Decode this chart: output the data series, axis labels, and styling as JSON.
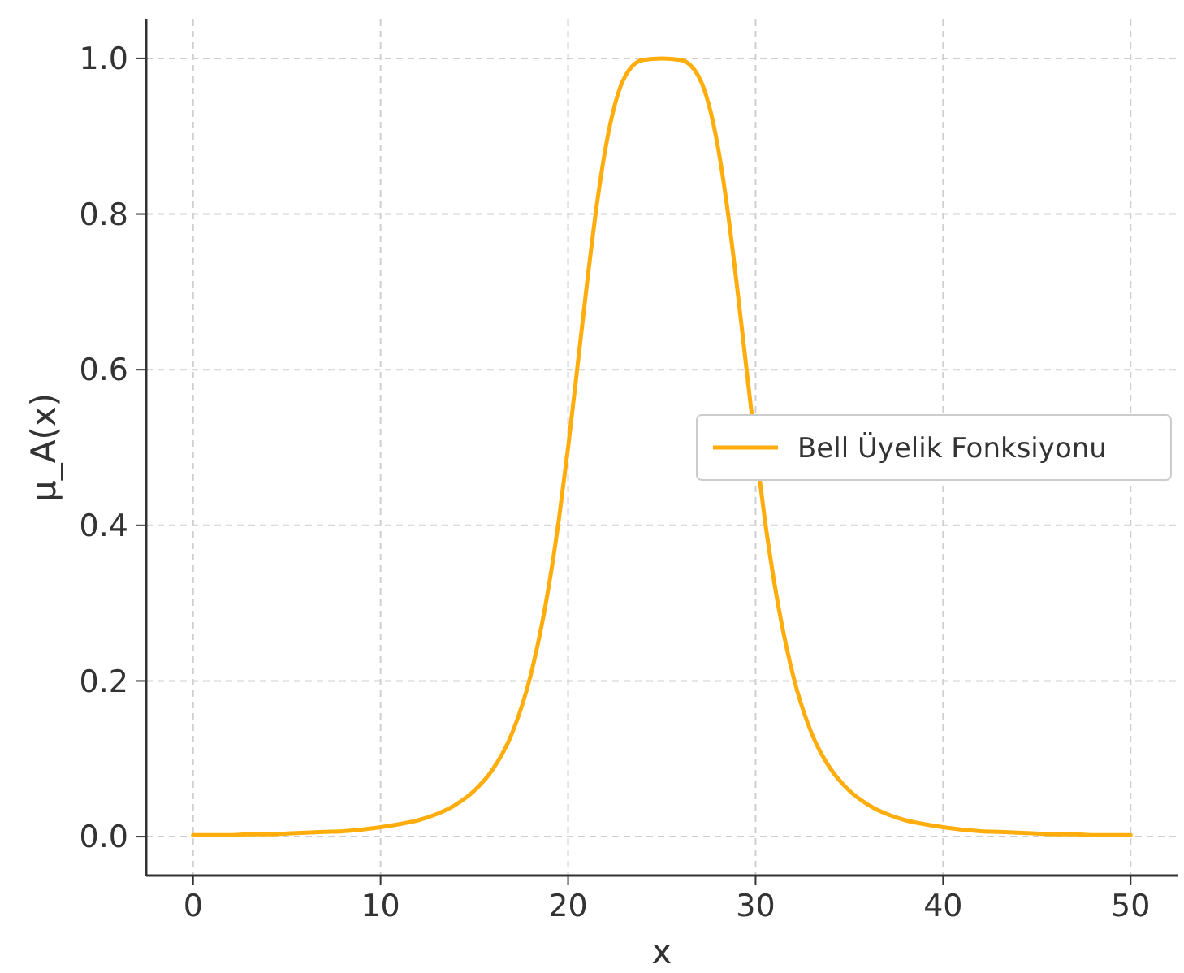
{
  "chart_data": {
    "type": "line",
    "xlabel": "x",
    "ylabel": "μ_A(x)",
    "x": [
      0,
      1,
      2,
      3,
      4,
      5,
      6,
      7,
      8,
      9,
      10,
      11,
      12,
      13,
      14,
      15,
      16,
      17,
      18,
      19,
      19.5,
      20,
      20.5,
      21,
      21.5,
      22,
      22.5,
      23,
      24,
      25,
      26,
      27,
      27.5,
      28,
      28.5,
      29,
      29.5,
      30,
      30.5,
      31,
      32,
      33,
      34,
      35,
      36,
      37,
      38,
      39,
      40,
      41,
      42,
      43,
      44,
      45,
      46,
      47,
      48,
      49,
      50
    ],
    "series": [
      {
        "name": "Bell Üyelik Fonksiyonu",
        "color": "#ffad0d",
        "values": [
          0.002,
          0.002,
          0.002,
          0.003,
          0.003,
          0.004,
          0.005,
          0.006,
          0.007,
          0.009,
          0.012,
          0.016,
          0.021,
          0.029,
          0.041,
          0.059,
          0.087,
          0.132,
          0.207,
          0.326,
          0.406,
          0.5,
          0.604,
          0.709,
          0.806,
          0.885,
          0.941,
          0.975,
          0.998,
          1,
          0.998,
          0.975,
          0.941,
          0.885,
          0.806,
          0.709,
          0.604,
          0.5,
          0.406,
          0.326,
          0.207,
          0.132,
          0.087,
          0.059,
          0.041,
          0.029,
          0.021,
          0.016,
          0.012,
          0.009,
          0.007,
          0.006,
          0.005,
          0.004,
          0.003,
          0.003,
          0.002,
          0.002,
          0.002
        ]
      }
    ],
    "xlim": [
      -2.5,
      52.5
    ],
    "ylim": [
      -0.05,
      1.05
    ],
    "xticks": [
      0,
      10,
      20,
      30,
      40,
      50
    ],
    "yticks": [
      {
        "value": 0,
        "label": "0.0"
      },
      {
        "value": 0.2,
        "label": "0.2"
      },
      {
        "value": 0.4,
        "label": "0.4"
      },
      {
        "value": 0.6,
        "label": "0.6"
      },
      {
        "value": 0.8,
        "label": "0.8"
      },
      {
        "value": 1,
        "label": "1.0"
      }
    ],
    "grid": true,
    "legend": "right",
    "marker": "none",
    "line_style": "solid"
  }
}
